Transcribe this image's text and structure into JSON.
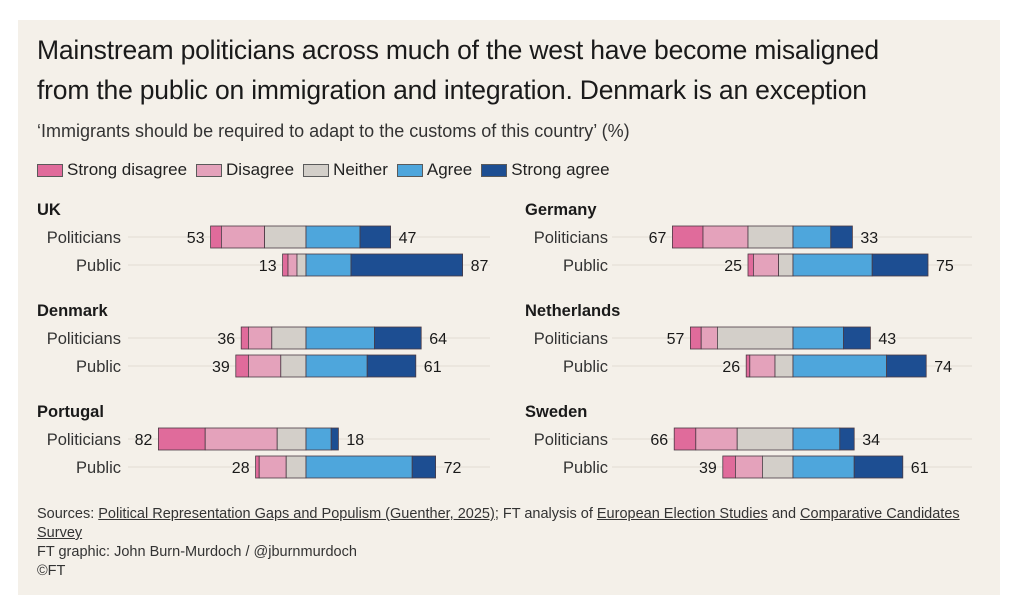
{
  "title_line1": "Mainstream politicians across much of the west have become misaligned",
  "title_line2": "from the public on immigration and integration. Denmark is an exception",
  "subtitle": "‘Immigrants should be required to adapt to the customs of this country’ (%)",
  "legend": [
    {
      "label": "Strong disagree",
      "color": "#e06b9b"
    },
    {
      "label": "Disagree",
      "color": "#e4a2bb"
    },
    {
      "label": "Neither",
      "color": "#d3cfc9"
    },
    {
      "label": "Agree",
      "color": "#4ea6dc"
    },
    {
      "label": "Strong agree",
      "color": "#1d4e92"
    }
  ],
  "footer": {
    "sources_prefix": "Sources: ",
    "source_link1": "Political Representation Gaps and Populism (Guenther, 2025)",
    "sources_mid": "; FT analysis of ",
    "source_link2": "European Election Studies",
    "sources_and": " and ",
    "source_link3": "Comparative Candidates Survey",
    "credit": "FT graphic: John Burn-Murdoch / @jburnmurdoch",
    "copyright": "©FT"
  },
  "chart_data": {
    "type": "bar",
    "subtype": "diverging-stacked-horizontal",
    "title": "Mainstream politicians across much of the west have become misaligned from the public on immigration and integration. Denmark is an exception",
    "subtitle": "‘Immigrants should be required to adapt to the customs of this country’ (%)",
    "unit": "%",
    "categories": [
      "Strong disagree",
      "Disagree",
      "Neither",
      "Agree",
      "Strong agree"
    ],
    "grid": true,
    "legend_position": "top-left",
    "panels": [
      {
        "country": "UK",
        "rows": [
          {
            "group": "Politicians",
            "values": [
              6,
              24,
              23,
              30,
              17
            ],
            "left_total": 53,
            "right_total": 47
          },
          {
            "group": "Public",
            "values": [
              3,
              5,
              5,
              25,
              62
            ],
            "left_total": 13,
            "right_total": 87
          }
        ]
      },
      {
        "country": "Germany",
        "rows": [
          {
            "group": "Politicians",
            "values": [
              17,
              25,
              25,
              21,
              12
            ],
            "left_total": 67,
            "right_total": 33
          },
          {
            "group": "Public",
            "values": [
              3,
              14,
              8,
              44,
              31
            ],
            "left_total": 25,
            "right_total": 75
          }
        ]
      },
      {
        "country": "Denmark",
        "rows": [
          {
            "group": "Politicians",
            "values": [
              4,
              13,
              19,
              38,
              26
            ],
            "left_total": 36,
            "right_total": 64
          },
          {
            "group": "Public",
            "values": [
              7,
              18,
              14,
              34,
              27
            ],
            "left_total": 39,
            "right_total": 61
          }
        ]
      },
      {
        "country": "Netherlands",
        "rows": [
          {
            "group": "Politicians",
            "values": [
              6,
              9,
              42,
              28,
              15
            ],
            "left_total": 57,
            "right_total": 43
          },
          {
            "group": "Public",
            "values": [
              2,
              14,
              10,
              52,
              22
            ],
            "left_total": 26,
            "right_total": 74
          }
        ]
      },
      {
        "country": "Portugal",
        "rows": [
          {
            "group": "Politicians",
            "values": [
              26,
              40,
              16,
              14,
              4
            ],
            "left_total": 82,
            "right_total": 18
          },
          {
            "group": "Public",
            "values": [
              2,
              15,
              11,
              59,
              13
            ],
            "left_total": 28,
            "right_total": 72
          }
        ]
      },
      {
        "country": "Sweden",
        "rows": [
          {
            "group": "Politicians",
            "values": [
              12,
              23,
              31,
              26,
              8
            ],
            "left_total": 66,
            "right_total": 34
          },
          {
            "group": "Public",
            "values": [
              7,
              15,
              17,
              34,
              27
            ],
            "left_total": 39,
            "right_total": 61
          }
        ]
      }
    ]
  }
}
